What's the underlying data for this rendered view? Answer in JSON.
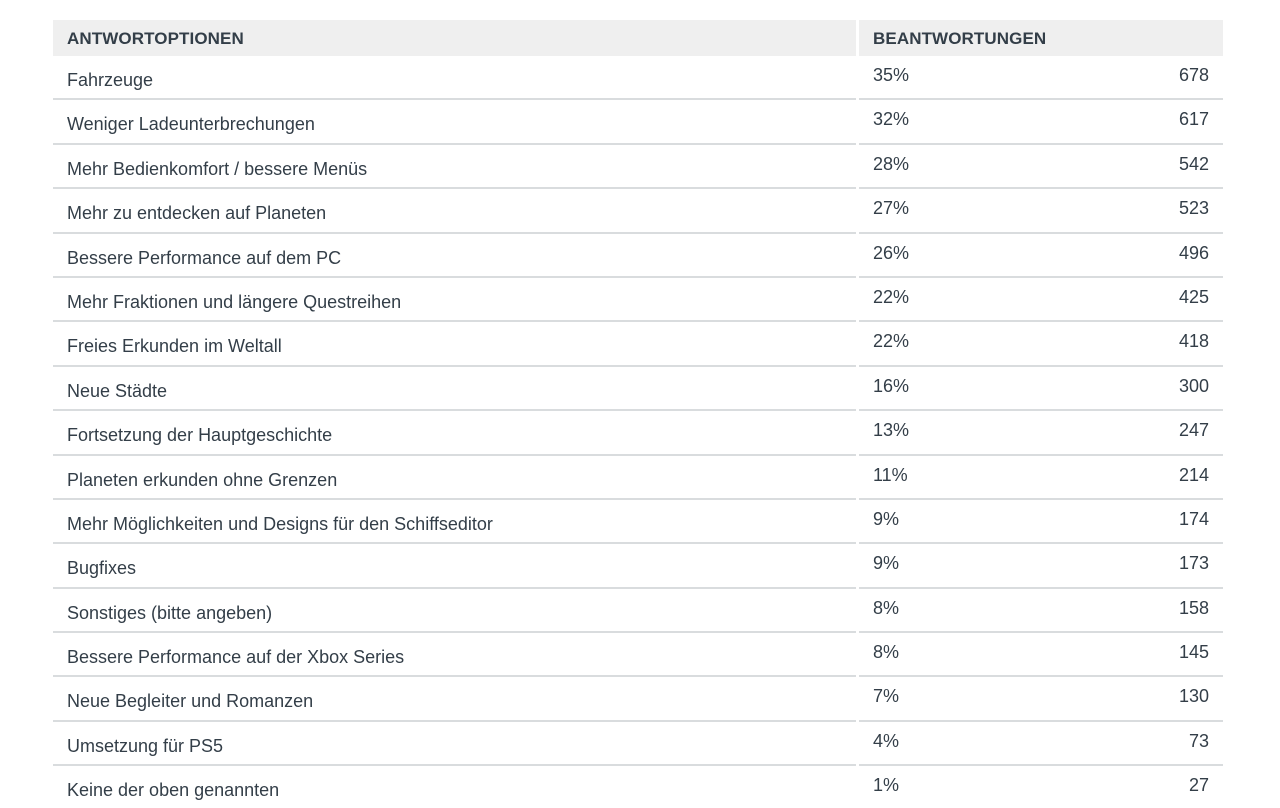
{
  "table": {
    "header_option": "ANTWORTOPTIONEN",
    "header_answers": "BEANTWORTUNGEN"
  },
  "chart_data": {
    "type": "table",
    "columns": [
      "ANTWORTOPTIONEN",
      "BEANTWORTUNGEN"
    ],
    "rows": [
      {
        "option": "Fahrzeuge",
        "percent": "35%",
        "count": "678"
      },
      {
        "option": "Weniger Ladeunterbrechungen",
        "percent": "32%",
        "count": "617"
      },
      {
        "option": "Mehr Bedienkomfort / bessere Menüs",
        "percent": "28%",
        "count": "542"
      },
      {
        "option": "Mehr zu entdecken auf Planeten",
        "percent": "27%",
        "count": "523"
      },
      {
        "option": "Bessere Performance auf dem PC",
        "percent": "26%",
        "count": "496"
      },
      {
        "option": "Mehr Fraktionen und längere Questreihen",
        "percent": "22%",
        "count": "425"
      },
      {
        "option": "Freies Erkunden im Weltall",
        "percent": "22%",
        "count": "418"
      },
      {
        "option": "Neue Städte",
        "percent": "16%",
        "count": "300"
      },
      {
        "option": "Fortsetzung der Hauptgeschichte",
        "percent": "13%",
        "count": "247"
      },
      {
        "option": "Planeten erkunden ohne Grenzen",
        "percent": "11%",
        "count": "214"
      },
      {
        "option": "Mehr Möglichkeiten und Designs für den Schiffseditor",
        "percent": "9%",
        "count": "174"
      },
      {
        "option": "Bugfixes",
        "percent": "9%",
        "count": "173"
      },
      {
        "option": "Sonstiges (bitte angeben)",
        "percent": "8%",
        "count": "158"
      },
      {
        "option": "Bessere Performance auf der Xbox Series",
        "percent": "8%",
        "count": "145"
      },
      {
        "option": "Neue Begleiter und Romanzen",
        "percent": "7%",
        "count": "130"
      },
      {
        "option": "Umsetzung für PS5",
        "percent": "4%",
        "count": "73"
      },
      {
        "option": "Keine der oben genannten",
        "percent": "1%",
        "count": "27"
      }
    ]
  }
}
